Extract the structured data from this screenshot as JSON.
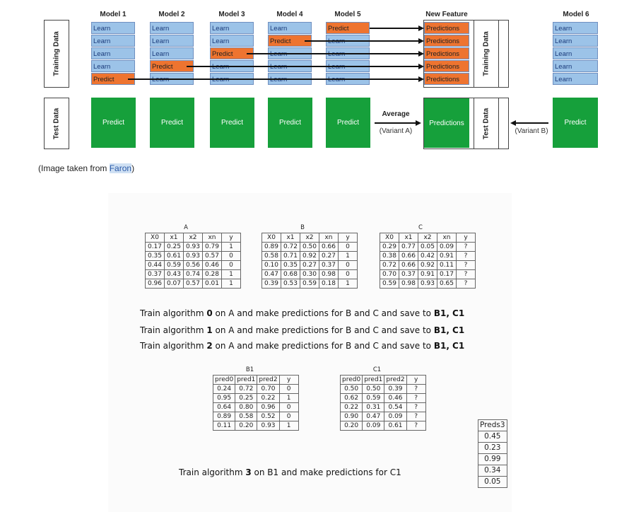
{
  "diagram": {
    "model_titles": [
      "Model 1",
      "Model 2",
      "Model 3",
      "Model 4",
      "Model 5"
    ],
    "new_feature_title": "New Feature",
    "model6_title": "Model 6",
    "training_label": "Training Data",
    "test_label": "Test Data",
    "learn_text": "Learn",
    "predict_text": "Predict",
    "predictions_text": "Predictions",
    "average_label": "Average",
    "variant_a": "(Variant A)",
    "variant_b": "(Variant B)"
  },
  "caption": {
    "prefix": "(Image taken from ",
    "link": "Faron",
    "suffix": ")"
  },
  "tables": {
    "A": {
      "title": "A",
      "headers": [
        "X0",
        "x1",
        "x2",
        "xn",
        "y"
      ],
      "rows": [
        [
          "0.17",
          "0.25",
          "0.93",
          "0.79",
          "1"
        ],
        [
          "0.35",
          "0.61",
          "0.93",
          "0.57",
          "0"
        ],
        [
          "0.44",
          "0.59",
          "0.56",
          "0.46",
          "0"
        ],
        [
          "0.37",
          "0.43",
          "0.74",
          "0.28",
          "1"
        ],
        [
          "0.96",
          "0.07",
          "0.57",
          "0.01",
          "1"
        ]
      ]
    },
    "B": {
      "title": "B",
      "headers": [
        "X0",
        "x1",
        "x2",
        "xn",
        "y"
      ],
      "rows": [
        [
          "0.89",
          "0.72",
          "0.50",
          "0.66",
          "0"
        ],
        [
          "0.58",
          "0.71",
          "0.92",
          "0.27",
          "1"
        ],
        [
          "0.10",
          "0.35",
          "0.27",
          "0.37",
          "0"
        ],
        [
          "0.47",
          "0.68",
          "0.30",
          "0.98",
          "0"
        ],
        [
          "0.39",
          "0.53",
          "0.59",
          "0.18",
          "1"
        ]
      ]
    },
    "C": {
      "title": "C",
      "headers": [
        "X0",
        "x1",
        "x2",
        "xn",
        "y"
      ],
      "rows": [
        [
          "0.29",
          "0.77",
          "0.05",
          "0.09",
          "?"
        ],
        [
          "0.38",
          "0.66",
          "0.42",
          "0.91",
          "?"
        ],
        [
          "0.72",
          "0.66",
          "0.92",
          "0.11",
          "?"
        ],
        [
          "0.70",
          "0.37",
          "0.91",
          "0.17",
          "?"
        ],
        [
          "0.59",
          "0.98",
          "0.93",
          "0.65",
          "?"
        ]
      ]
    },
    "B1": {
      "title": "B1",
      "headers": [
        "pred0",
        "pred1",
        "pred2",
        "y"
      ],
      "rows": [
        [
          "0.24",
          "0.72",
          "0.70",
          "0"
        ],
        [
          "0.95",
          "0.25",
          "0.22",
          "1"
        ],
        [
          "0.64",
          "0.80",
          "0.96",
          "0"
        ],
        [
          "0.89",
          "0.58",
          "0.52",
          "0"
        ],
        [
          "0.11",
          "0.20",
          "0.93",
          "1"
        ]
      ]
    },
    "C1": {
      "title": "C1",
      "headers": [
        "pred0",
        "pred1",
        "pred2",
        "y"
      ],
      "rows": [
        [
          "0.50",
          "0.50",
          "0.39",
          "?"
        ],
        [
          "0.62",
          "0.59",
          "0.46",
          "?"
        ],
        [
          "0.22",
          "0.31",
          "0.54",
          "?"
        ],
        [
          "0.90",
          "0.47",
          "0.09",
          "?"
        ],
        [
          "0.20",
          "0.09",
          "0.61",
          "?"
        ]
      ]
    },
    "Preds3": {
      "title": "Preds3",
      "values": [
        "0.45",
        "0.23",
        "0.99",
        "0.34",
        "0.05"
      ]
    }
  },
  "instructions": [
    {
      "pre": "Train algorithm ",
      "num": "0",
      "mid": " on A and make predictions for  B and C and save to ",
      "bold_end": "B1, C1"
    },
    {
      "pre": "Train algorithm ",
      "num": "1",
      "mid": " on A and make predictions for  B and C and save to ",
      "bold_end": "B1, C1"
    },
    {
      "pre": "Train algorithm ",
      "num": "2",
      "mid": " on A and make predictions for  B and C and save to ",
      "bold_end": "B1, C1"
    }
  ],
  "final_instruction": {
    "pre": "Train algorithm ",
    "num": "3",
    "post": " on B1  and make predictions for C1"
  }
}
